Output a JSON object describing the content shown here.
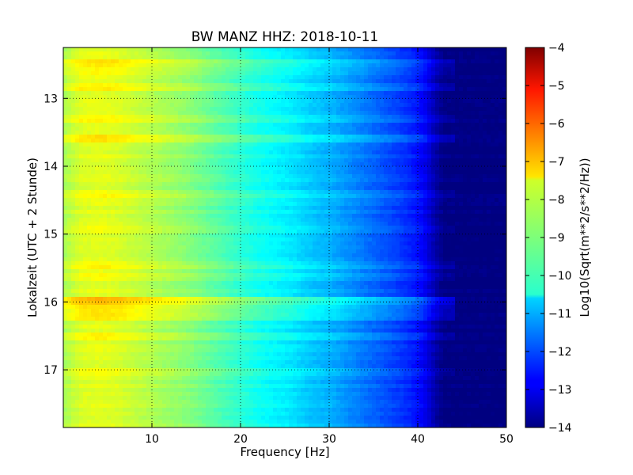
{
  "chart_data": {
    "type": "heatmap",
    "title": "BW MANZ HHZ: 2018-10-11",
    "xlabel": "Frequency [Hz]",
    "ylabel": "Lokalzeit (UTC + 2 Stunde)",
    "colorbar_label": "Log10(Sqrt(m**2/s**2/Hz))",
    "colormap": "jet",
    "xlim": [
      0,
      50
    ],
    "ylim": [
      12.25,
      17.85
    ],
    "y_inverted": true,
    "clim": [
      -14,
      -4
    ],
    "x_ticks": [
      10,
      20,
      30,
      40,
      50
    ],
    "x_tick_labels": [
      "10",
      "20",
      "30",
      "40",
      "50"
    ],
    "y_ticks": [
      13,
      14,
      15,
      16,
      17
    ],
    "y_tick_labels": [
      "13",
      "14",
      "15",
      "16",
      "17"
    ],
    "colorbar_ticks": [
      -4,
      -5,
      -6,
      -7,
      -8,
      -9,
      -10,
      -11,
      -12,
      -13,
      -14
    ],
    "colorbar_tick_labels": [
      "−4",
      "−5",
      "−6",
      "−7",
      "−8",
      "−9",
      "−10",
      "−11",
      "−12",
      "−13",
      "−14"
    ],
    "grid": true,
    "spectrum_profile": {
      "frequency_hz": [
        0,
        2,
        4,
        6,
        8,
        10,
        12,
        14,
        16,
        18,
        20,
        22,
        24,
        26,
        28,
        30,
        32,
        34,
        36,
        38,
        40,
        41,
        42,
        43,
        44,
        46,
        48,
        50
      ],
      "log_psd": [
        -8.6,
        -8.1,
        -8.0,
        -8.1,
        -8.3,
        -8.5,
        -8.7,
        -8.9,
        -9.2,
        -9.5,
        -9.8,
        -10.1,
        -10.3,
        -10.5,
        -10.8,
        -11.0,
        -11.3,
        -11.6,
        -11.9,
        -12.2,
        -12.6,
        -13.0,
        -13.6,
        -14.0,
        -14.0,
        -14.0,
        -14.0,
        -14.0
      ]
    },
    "time_bands": [
      {
        "time_h": 12.5,
        "offset": 0.5
      },
      {
        "time_h": 12.6,
        "offset": 0.35
      },
      {
        "time_h": 12.85,
        "offset": 0.4
      },
      {
        "time_h": 13.3,
        "offset": 0.3
      },
      {
        "time_h": 13.6,
        "offset": 0.45
      },
      {
        "time_h": 14.4,
        "offset": 0.25
      },
      {
        "time_h": 14.95,
        "offset": 0.3
      },
      {
        "time_h": 15.45,
        "offset": 0.35
      },
      {
        "time_h": 15.65,
        "offset": 0.25
      },
      {
        "time_h": 15.98,
        "offset": 0.9
      },
      {
        "time_h": 16.0,
        "offset": 0.8
      },
      {
        "time_h": 16.05,
        "offset": 0.45
      },
      {
        "time_h": 16.12,
        "offset": 0.6
      },
      {
        "time_h": 16.22,
        "offset": 0.5
      },
      {
        "time_h": 16.5,
        "offset": 0.3
      },
      {
        "time_h": 17.05,
        "offset": 0.2
      }
    ]
  }
}
